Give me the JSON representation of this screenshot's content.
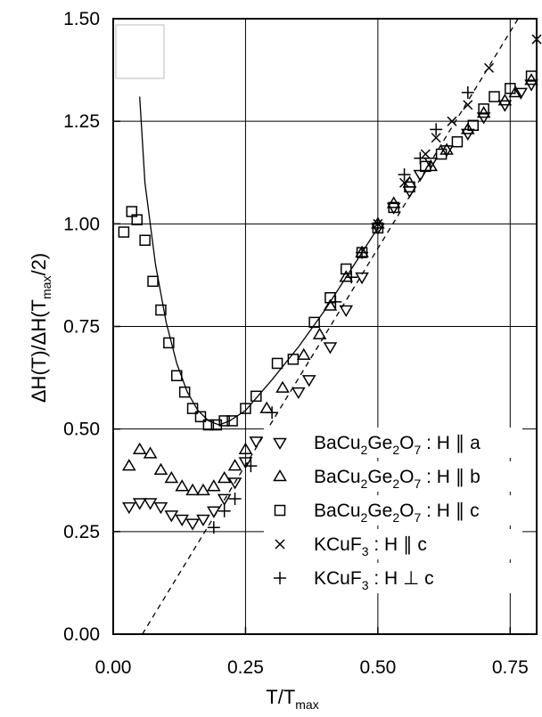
{
  "chart_data": {
    "type": "scatter",
    "xlabel": {
      "main": "T/T",
      "sub": "max"
    },
    "ylabel": {
      "pre": "ΔH(T)/ΔH(T",
      "sub": "max",
      "post": "/2)"
    },
    "xlim": [
      0.0,
      0.8
    ],
    "ylim": [
      0.0,
      1.5
    ],
    "x_ticks": [
      0.0,
      0.25,
      0.5,
      0.75
    ],
    "x_tick_labels": [
      "0.00",
      "0.25",
      "0.50",
      "0.75"
    ],
    "y_ticks": [
      0.0,
      0.25,
      0.5,
      0.75,
      1.0,
      1.25,
      1.5
    ],
    "y_tick_labels": [
      "0.00",
      "0.25",
      "0.50",
      "0.75",
      "1.00",
      "1.25",
      "1.50"
    ],
    "grid": true,
    "legend_position": "bottom-right",
    "series": [
      {
        "key": "bcgo_a",
        "marker": "triangle-down",
        "legend": [
          {
            "t": "BaCu"
          },
          {
            "t": "2",
            "s": true
          },
          {
            "t": "Ge"
          },
          {
            "t": "2",
            "s": true
          },
          {
            "t": "O"
          },
          {
            "t": "7",
            "s": true
          },
          {
            "t": " : H ∥ a"
          }
        ],
        "points": [
          [
            0.03,
            0.31
          ],
          [
            0.05,
            0.32
          ],
          [
            0.07,
            0.32
          ],
          [
            0.09,
            0.31
          ],
          [
            0.11,
            0.29
          ],
          [
            0.13,
            0.28
          ],
          [
            0.15,
            0.27
          ],
          [
            0.17,
            0.28
          ],
          [
            0.19,
            0.3
          ],
          [
            0.21,
            0.33
          ],
          [
            0.23,
            0.37
          ],
          [
            0.25,
            0.42
          ],
          [
            0.27,
            0.47
          ],
          [
            0.35,
            0.59
          ],
          [
            0.37,
            0.62
          ],
          [
            0.41,
            0.7
          ],
          [
            0.44,
            0.79
          ],
          [
            0.47,
            0.87
          ],
          [
            0.5,
            0.99
          ],
          [
            0.53,
            1.04
          ],
          [
            0.56,
            1.08
          ],
          [
            0.58,
            1.12
          ],
          [
            0.6,
            1.15
          ],
          [
            0.63,
            1.18
          ],
          [
            0.67,
            1.22
          ],
          [
            0.7,
            1.26
          ],
          [
            0.74,
            1.29
          ],
          [
            0.77,
            1.32
          ],
          [
            0.79,
            1.34
          ]
        ]
      },
      {
        "key": "bcgo_b",
        "marker": "triangle-up",
        "legend": [
          {
            "t": "BaCu"
          },
          {
            "t": "2",
            "s": true
          },
          {
            "t": "Ge"
          },
          {
            "t": "2",
            "s": true
          },
          {
            "t": "O"
          },
          {
            "t": "7",
            "s": true
          },
          {
            "t": " : H ∥ b"
          }
        ],
        "points": [
          [
            0.03,
            0.41
          ],
          [
            0.05,
            0.45
          ],
          [
            0.07,
            0.44
          ],
          [
            0.09,
            0.4
          ],
          [
            0.11,
            0.38
          ],
          [
            0.13,
            0.36
          ],
          [
            0.15,
            0.35
          ],
          [
            0.17,
            0.35
          ],
          [
            0.19,
            0.36
          ],
          [
            0.21,
            0.38
          ],
          [
            0.23,
            0.41
          ],
          [
            0.25,
            0.45
          ],
          [
            0.29,
            0.55
          ],
          [
            0.32,
            0.6
          ],
          [
            0.36,
            0.68
          ],
          [
            0.39,
            0.73
          ],
          [
            0.41,
            0.8
          ],
          [
            0.44,
            0.87
          ],
          [
            0.47,
            0.93
          ],
          [
            0.5,
            1.0
          ],
          [
            0.53,
            1.05
          ],
          [
            0.56,
            1.1
          ],
          [
            0.6,
            1.14
          ],
          [
            0.63,
            1.18
          ],
          [
            0.67,
            1.23
          ],
          [
            0.7,
            1.27
          ],
          [
            0.74,
            1.3
          ],
          [
            0.76,
            1.32
          ],
          [
            0.79,
            1.35
          ]
        ]
      },
      {
        "key": "bcgo_c",
        "marker": "square",
        "legend": [
          {
            "t": "BaCu"
          },
          {
            "t": "2",
            "s": true
          },
          {
            "t": "Ge"
          },
          {
            "t": "2",
            "s": true
          },
          {
            "t": "O"
          },
          {
            "t": "7",
            "s": true
          },
          {
            "t": " : H ∥ c"
          }
        ],
        "points": [
          [
            0.02,
            0.98
          ],
          [
            0.035,
            1.03
          ],
          [
            0.045,
            1.01
          ],
          [
            0.06,
            0.96
          ],
          [
            0.075,
            0.86
          ],
          [
            0.09,
            0.79
          ],
          [
            0.105,
            0.71
          ],
          [
            0.12,
            0.63
          ],
          [
            0.135,
            0.59
          ],
          [
            0.15,
            0.55
          ],
          [
            0.165,
            0.53
          ],
          [
            0.18,
            0.51
          ],
          [
            0.195,
            0.51
          ],
          [
            0.21,
            0.52
          ],
          [
            0.225,
            0.52
          ],
          [
            0.25,
            0.55
          ],
          [
            0.27,
            0.58
          ],
          [
            0.31,
            0.66
          ],
          [
            0.34,
            0.67
          ],
          [
            0.38,
            0.76
          ],
          [
            0.41,
            0.82
          ],
          [
            0.44,
            0.89
          ],
          [
            0.47,
            0.93
          ],
          [
            0.5,
            0.99
          ],
          [
            0.53,
            1.04
          ],
          [
            0.56,
            1.09
          ],
          [
            0.59,
            1.14
          ],
          [
            0.62,
            1.17
          ],
          [
            0.65,
            1.2
          ],
          [
            0.68,
            1.24
          ],
          [
            0.7,
            1.28
          ],
          [
            0.72,
            1.31
          ],
          [
            0.75,
            1.33
          ],
          [
            0.79,
            1.36
          ]
        ]
      },
      {
        "key": "kcuf_par",
        "marker": "cross",
        "legend": [
          {
            "t": "KCuF"
          },
          {
            "t": "3",
            "s": true
          },
          {
            "t": " : H ∥ c"
          }
        ],
        "points": [
          [
            0.5,
            1.0
          ],
          [
            0.55,
            1.1
          ],
          [
            0.59,
            1.17
          ],
          [
            0.61,
            1.21
          ],
          [
            0.64,
            1.25
          ],
          [
            0.67,
            1.29
          ],
          [
            0.71,
            1.38
          ],
          [
            0.8,
            1.45
          ]
        ]
      },
      {
        "key": "kcuf_perp",
        "marker": "plus",
        "legend": [
          {
            "t": "KCuF"
          },
          {
            "t": "3",
            "s": true
          },
          {
            "t": " : H ⊥ c"
          }
        ],
        "points": [
          [
            0.19,
            0.26
          ],
          [
            0.21,
            0.3
          ],
          [
            0.23,
            0.33
          ],
          [
            0.26,
            0.41
          ],
          [
            0.3,
            0.54
          ],
          [
            0.42,
            0.81
          ],
          [
            0.45,
            0.87
          ],
          [
            0.47,
            0.93
          ],
          [
            0.5,
            1.0
          ],
          [
            0.55,
            1.12
          ],
          [
            0.58,
            1.16
          ],
          [
            0.61,
            1.23
          ],
          [
            0.67,
            1.32
          ]
        ]
      }
    ],
    "fit_solid": [
      [
        0.05,
        1.31
      ],
      [
        0.06,
        1.1
      ],
      [
        0.08,
        0.9
      ],
      [
        0.1,
        0.76
      ],
      [
        0.12,
        0.66
      ],
      [
        0.14,
        0.59
      ],
      [
        0.16,
        0.545
      ],
      [
        0.18,
        0.52
      ],
      [
        0.2,
        0.51
      ],
      [
        0.22,
        0.52
      ],
      [
        0.25,
        0.545
      ],
      [
        0.3,
        0.62
      ],
      [
        0.35,
        0.7
      ],
      [
        0.4,
        0.79
      ],
      [
        0.45,
        0.89
      ],
      [
        0.5,
        0.99
      ]
    ],
    "fit_dashed": [
      [
        0.055,
        0.0
      ],
      [
        0.765,
        1.5
      ]
    ]
  }
}
